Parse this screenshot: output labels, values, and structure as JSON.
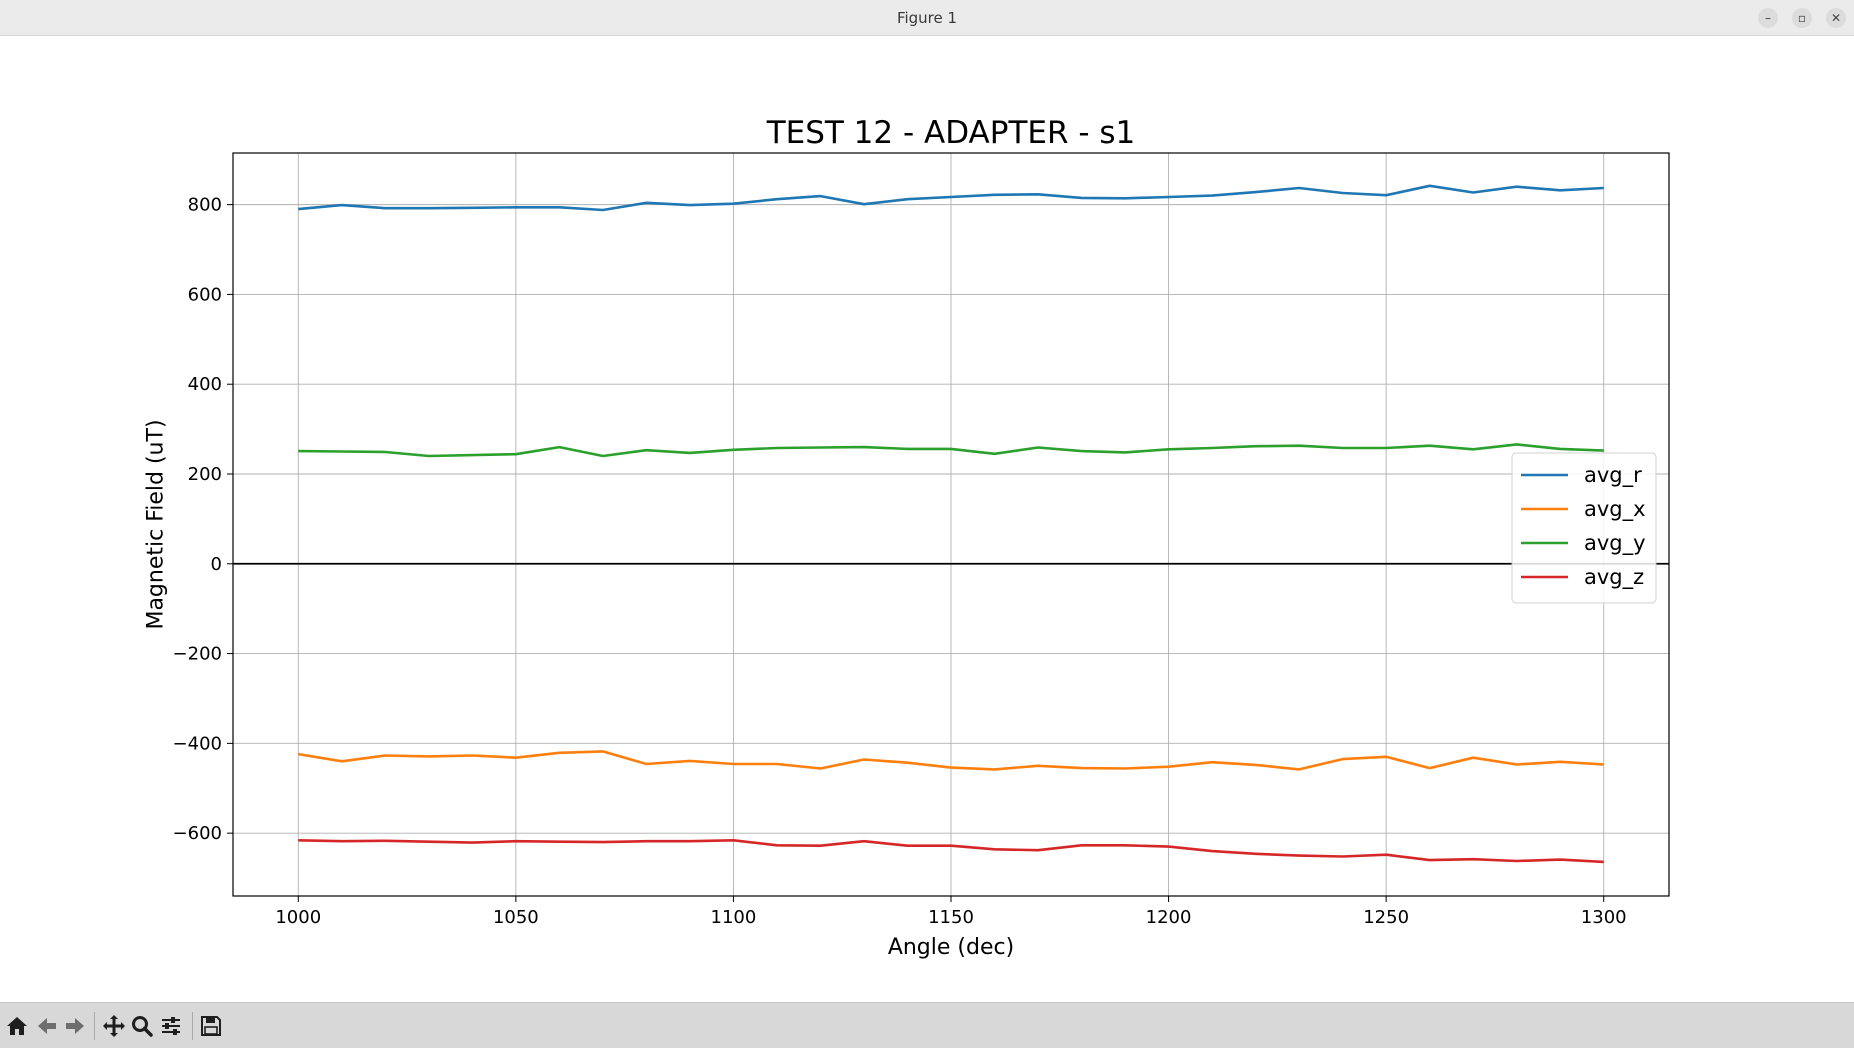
{
  "window": {
    "title": "Figure 1",
    "buttons": {
      "minimize": "–",
      "maximize": "▫",
      "close": "✕"
    }
  },
  "toolbar": {
    "items": [
      "home-icon",
      "back-icon",
      "forward-icon",
      "pan-icon",
      "zoom-icon",
      "configure-subplots-icon",
      "save-icon"
    ]
  },
  "chart_data": {
    "type": "line",
    "title": "TEST 12 - ADAPTER - s1",
    "xlabel": "Angle (dec)",
    "ylabel": "Magnetic Field (uT)",
    "xlim": [
      985,
      1315
    ],
    "ylim": [
      -740,
      915
    ],
    "xticks": [
      1000,
      1050,
      1100,
      1150,
      1200,
      1250,
      1300
    ],
    "xtick_labels": [
      "1000",
      "1050",
      "1100",
      "1150",
      "1200",
      "1250",
      "1300"
    ],
    "yticks": [
      800,
      600,
      400,
      200,
      0,
      -200,
      -400,
      -600
    ],
    "ytick_labels": [
      "800",
      "600",
      "400",
      "200",
      "0",
      "−200",
      "−400",
      "−600"
    ],
    "grid": true,
    "zero_line": true,
    "legend_position": "center-right",
    "x": [
      1000,
      1010,
      1020,
      1030,
      1040,
      1050,
      1060,
      1070,
      1080,
      1090,
      1100,
      1110,
      1120,
      1130,
      1140,
      1150,
      1160,
      1170,
      1180,
      1190,
      1200,
      1210,
      1220,
      1230,
      1240,
      1250,
      1260,
      1270,
      1280,
      1290,
      1300
    ],
    "series": [
      {
        "name": "avg_r",
        "color": "#1f77b4",
        "values": [
          790,
          799,
          792,
          792,
          793,
          794,
          794,
          788,
          804,
          799,
          802,
          812,
          819,
          801,
          812,
          817,
          822,
          823,
          815,
          814,
          817,
          820,
          828,
          837,
          826,
          821,
          842,
          827,
          840,
          832,
          837
        ]
      },
      {
        "name": "avg_x",
        "color": "#ff7f0e",
        "values": [
          -424,
          -440,
          -427,
          -429,
          -427,
          -432,
          -421,
          -418,
          -446,
          -439,
          -446,
          -446,
          -456,
          -436,
          -443,
          -454,
          -458,
          -450,
          -455,
          -456,
          -452,
          -442,
          -448,
          -458,
          -435,
          -430,
          -455,
          -432,
          -447,
          -441,
          -447
        ]
      },
      {
        "name": "avg_y",
        "color": "#2ca02c",
        "values": [
          251,
          250,
          249,
          240,
          242,
          244,
          260,
          240,
          253,
          247,
          254,
          258,
          259,
          260,
          256,
          256,
          245,
          259,
          251,
          248,
          255,
          258,
          262,
          263,
          258,
          258,
          263,
          255,
          266,
          256,
          252
        ]
      },
      {
        "name": "avg_z",
        "color": "#d62728",
        "values": [
          -616,
          -618,
          -617,
          -619,
          -621,
          -618,
          -619,
          -620,
          -618,
          -618,
          -616,
          -627,
          -628,
          -618,
          -628,
          -628,
          -636,
          -638,
          -627,
          -627,
          -630,
          -640,
          -646,
          -650,
          -652,
          -648,
          -660,
          -658,
          -662,
          -659,
          -664
        ]
      }
    ]
  }
}
